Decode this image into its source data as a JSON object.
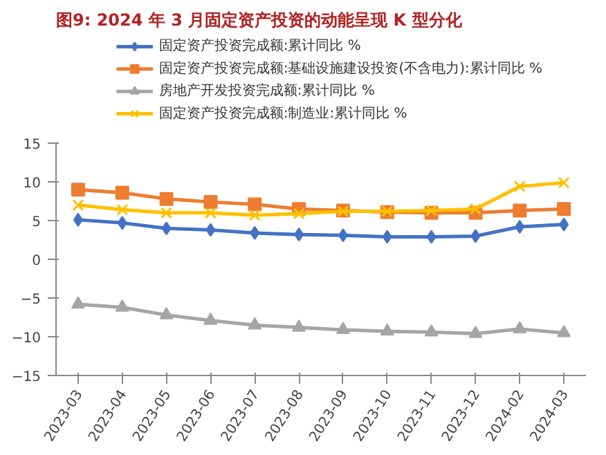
{
  "chart_data": {
    "type": "line",
    "title": "图9:  2024 年 3 月固定资产投资的动能呈现 K 型分化",
    "categories": [
      "2023-03",
      "2023-04",
      "2023-05",
      "2023-06",
      "2023-07",
      "2023-08",
      "2023-09",
      "2023-10",
      "2023-11",
      "2023-12",
      "2024-02",
      "2024-03"
    ],
    "series": [
      {
        "name": "固定资产投资完成额:累计同比 %",
        "color": "#4472c4",
        "marker": "diamond",
        "values": [
          5.1,
          4.7,
          4.0,
          3.8,
          3.4,
          3.2,
          3.1,
          2.9,
          2.9,
          3.0,
          4.2,
          4.5
        ]
      },
      {
        "name": "固定资产投资完成额:基础设施建设投资(不含电力):累计同比 %",
        "color": "#ed7d31",
        "marker": "square",
        "values": [
          9.0,
          8.6,
          7.8,
          7.4,
          7.1,
          6.5,
          6.3,
          6.1,
          6.0,
          6.0,
          6.3,
          6.5
        ]
      },
      {
        "name": "房地产开发投资完成额:累计同比 %",
        "color": "#a5a5a5",
        "marker": "triangle",
        "values": [
          -5.8,
          -6.2,
          -7.2,
          -7.9,
          -8.5,
          -8.8,
          -9.1,
          -9.3,
          -9.4,
          -9.6,
          -9.0,
          -9.5
        ]
      },
      {
        "name": "固定资产投资完成额:制造业:累计同比 %",
        "color": "#ffc000",
        "marker": "cross",
        "values": [
          7.0,
          6.4,
          6.0,
          6.0,
          5.7,
          5.9,
          6.2,
          6.2,
          6.3,
          6.5,
          9.4,
          9.9
        ]
      }
    ],
    "ylim": [
      -15,
      15
    ],
    "yticks": [
      -15,
      -10,
      -5,
      0,
      5,
      10,
      15
    ],
    "grid": false,
    "legend": "top"
  }
}
